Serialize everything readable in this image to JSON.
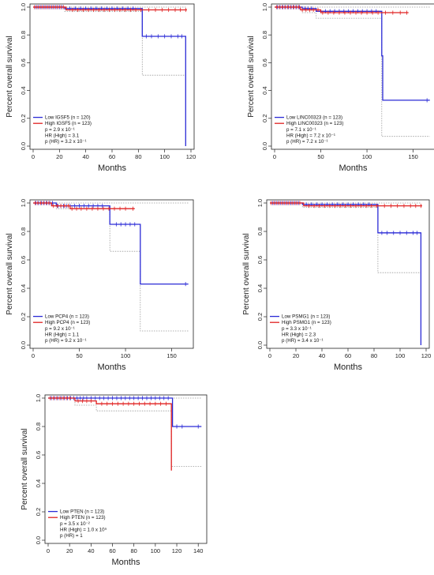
{
  "chart_data": [
    {
      "type": "line",
      "subtype": "kaplan-meier",
      "xlabel": "Months",
      "ylabel": "Percent overall survival",
      "xlim": [
        0,
        120
      ],
      "ylim": [
        0,
        1.0
      ],
      "xticks": [
        "0",
        "20",
        "40",
        "60",
        "80",
        "100",
        "120"
      ],
      "yticks": [
        "0.0",
        "0.2",
        "0.4",
        "0.6",
        "0.8",
        "1.0"
      ],
      "legend_position": "bottom-left",
      "legend": [
        "Low IGSF5 (n = 120)",
        "High IGSF5 (n = 123)",
        "p = 2.9 x 10⁻¹",
        "HR (High) = 3.1",
        "p (HR) = 3.2 x 10⁻¹"
      ],
      "colors": {
        "low": "#2a2ad6",
        "high": "#e02020",
        "ci": "#999999"
      },
      "series": [
        {
          "group": "low",
          "x": [
            0,
            24,
            83,
            116,
            116
          ],
          "y": [
            1.0,
            0.99,
            0.79,
            0.79,
            0.0
          ]
        },
        {
          "group": "high",
          "x": [
            0,
            25,
            117
          ],
          "y": [
            1.0,
            0.98,
            0.98
          ]
        }
      ],
      "ci": [
        {
          "x": [
            0,
            83,
            116
          ],
          "y": [
            1.0,
            1.0,
            1.0
          ]
        },
        {
          "x": [
            0,
            24,
            83,
            116
          ],
          "y": [
            1.0,
            0.97,
            0.51,
            0.51
          ]
        }
      ],
      "censor_low": [
        2,
        4,
        6,
        8,
        10,
        12,
        14,
        16,
        18,
        20,
        22,
        28,
        32,
        36,
        40,
        44,
        48,
        52,
        56,
        60,
        64,
        68,
        72,
        76,
        86,
        90,
        95,
        100,
        105,
        110,
        113
      ],
      "censor_high": [
        1,
        3,
        5,
        7,
        9,
        11,
        13,
        15,
        17,
        19,
        21,
        23,
        30,
        34,
        38,
        42,
        46,
        50,
        54,
        58,
        62,
        66,
        70,
        74,
        78,
        82,
        88,
        93,
        98,
        103,
        108,
        112,
        116
      ]
    },
    {
      "type": "line",
      "subtype": "kaplan-meier",
      "xlabel": "Months",
      "ylabel": "Percent overall survival",
      "xlim": [
        0,
        170
      ],
      "ylim": [
        0,
        1.0
      ],
      "xticks": [
        "0",
        "50",
        "100",
        "150"
      ],
      "yticks": [
        "0.0",
        "0.2",
        "0.4",
        "0.6",
        "0.8",
        "1.0"
      ],
      "legend_position": "bottom-left",
      "legend": [
        "Low LINC00323 (n = 123)",
        "High LINC00323 (n = 123)",
        "p = 7.1 x 10⁻¹",
        "HR (High) = 7.2 x 10⁻¹",
        "p (HR) = 7.2 x 10⁻¹"
      ],
      "colors": {
        "low": "#2a2ad6",
        "high": "#e02020",
        "ci": "#999999"
      },
      "series": [
        {
          "group": "low",
          "x": [
            0,
            30,
            45,
            115,
            116,
            117,
            168
          ],
          "y": [
            1.0,
            0.99,
            0.97,
            0.97,
            0.65,
            0.33,
            0.33
          ]
        },
        {
          "group": "high",
          "x": [
            0,
            28,
            50,
            145
          ],
          "y": [
            1.0,
            0.98,
            0.96,
            0.96
          ]
        }
      ],
      "ci": [
        {
          "x": [
            0,
            116,
            168
          ],
          "y": [
            1.0,
            1.0,
            1.0
          ]
        },
        {
          "x": [
            0,
            30,
            45,
            116,
            168
          ],
          "y": [
            1.0,
            0.96,
            0.92,
            0.07,
            0.07
          ]
        }
      ],
      "censor_low": [
        3,
        6,
        9,
        12,
        15,
        18,
        21,
        24,
        27,
        33,
        36,
        40,
        55,
        60,
        65,
        70,
        75,
        80,
        85,
        90,
        95,
        100,
        105,
        110,
        165
      ],
      "censor_high": [
        2,
        5,
        8,
        11,
        14,
        17,
        20,
        23,
        26,
        30,
        34,
        38,
        42,
        47,
        52,
        58,
        64,
        70,
        76,
        82,
        88,
        94,
        100,
        106,
        112,
        120,
        128,
        136,
        143
      ]
    },
    {
      "type": "line",
      "subtype": "kaplan-meier",
      "xlabel": "Months",
      "ylabel": "Percent overall survival",
      "xlim": [
        0,
        170
      ],
      "ylim": [
        0,
        1.0
      ],
      "xticks": [
        "0",
        "50",
        "100",
        "150"
      ],
      "yticks": [
        "0.0",
        "0.2",
        "0.4",
        "0.6",
        "0.8",
        "1.0"
      ],
      "legend_position": "bottom-left",
      "legend": [
        "Low PCP4 (n = 123)",
        "High PCP4 (n = 123)",
        "p = 9.2 x 10⁻¹",
        "HR (High) = 1.1",
        "p (HR) = 9.2 x 10⁻¹"
      ],
      "colors": {
        "low": "#2a2ad6",
        "high": "#e02020",
        "ci": "#999999"
      },
      "series": [
        {
          "group": "low",
          "x": [
            0,
            25,
            83,
            116,
            168
          ],
          "y": [
            1.0,
            0.98,
            0.85,
            0.43,
            0.43
          ]
        },
        {
          "group": "high",
          "x": [
            0,
            20,
            40,
            110
          ],
          "y": [
            1.0,
            0.98,
            0.96,
            0.96
          ]
        }
      ],
      "ci": [
        {
          "x": [
            0,
            168
          ],
          "y": [
            1.0,
            1.0
          ]
        },
        {
          "x": [
            0,
            25,
            83,
            116,
            168
          ],
          "y": [
            1.0,
            0.96,
            0.66,
            0.1,
            0.1
          ]
        }
      ],
      "censor_low": [
        3,
        6,
        9,
        12,
        15,
        18,
        21,
        27,
        30,
        33,
        36,
        40,
        45,
        50,
        55,
        60,
        65,
        70,
        75,
        90,
        95,
        100,
        105,
        110,
        165
      ],
      "censor_high": [
        2,
        5,
        8,
        11,
        14,
        17,
        22,
        26,
        30,
        34,
        38,
        42,
        47,
        52,
        58,
        64,
        70,
        76,
        82,
        88,
        94,
        100,
        108
      ]
    },
    {
      "type": "line",
      "subtype": "kaplan-meier",
      "xlabel": "Months",
      "ylabel": "Percent overall survival",
      "xlim": [
        0,
        120
      ],
      "ylim": [
        0,
        1.0
      ],
      "xticks": [
        "0",
        "20",
        "40",
        "60",
        "80",
        "100",
        "120"
      ],
      "yticks": [
        "0.0",
        "0.2",
        "0.4",
        "0.6",
        "0.8",
        "1.0"
      ],
      "legend_position": "bottom-left",
      "legend": [
        "Low PSMG1 (n = 123)",
        "High PSMG1 (n = 123)",
        "p = 3.3 x 10⁻¹",
        "HR (High) = 2.3",
        "p (HR) = 3.4 x 10⁻¹"
      ],
      "colors": {
        "low": "#2a2ad6",
        "high": "#e02020",
        "ci": "#999999"
      },
      "series": [
        {
          "group": "low",
          "x": [
            0,
            25,
            83,
            116,
            116
          ],
          "y": [
            1.0,
            0.99,
            0.79,
            0.79,
            0.0
          ]
        },
        {
          "group": "high",
          "x": [
            0,
            26,
            117
          ],
          "y": [
            1.0,
            0.98,
            0.98
          ]
        }
      ],
      "ci": [
        {
          "x": [
            0,
            116
          ],
          "y": [
            1.0,
            1.0
          ]
        },
        {
          "x": [
            0,
            25,
            83,
            116
          ],
          "y": [
            1.0,
            0.97,
            0.51,
            0.51
          ]
        }
      ],
      "censor_low": [
        2,
        4,
        6,
        8,
        10,
        12,
        14,
        16,
        18,
        20,
        22,
        28,
        32,
        36,
        40,
        44,
        48,
        52,
        56,
        60,
        64,
        68,
        72,
        76,
        86,
        90,
        95,
        100,
        105,
        110,
        113
      ],
      "censor_high": [
        1,
        3,
        5,
        7,
        9,
        11,
        13,
        15,
        17,
        19,
        21,
        23,
        30,
        34,
        38,
        42,
        46,
        50,
        54,
        58,
        62,
        66,
        70,
        74,
        78,
        82,
        88,
        93,
        98,
        103,
        108,
        112,
        116
      ]
    },
    {
      "type": "line",
      "subtype": "kaplan-meier",
      "xlabel": "Months",
      "ylabel": "Percent overall survival",
      "xlim": [
        0,
        145
      ],
      "ylim": [
        0,
        1.0
      ],
      "xticks": [
        "0",
        "20",
        "40",
        "60",
        "80",
        "100",
        "120",
        "140"
      ],
      "yticks": [
        "0.0",
        "0.2",
        "0.4",
        "0.6",
        "0.8",
        "1.0"
      ],
      "legend_position": "bottom-left",
      "legend": [
        "Low PTEN (n = 123)",
        "High PTEN (n = 123)",
        "p = 3.5 x 10⁻²",
        "HR (High) = 1.0 x 10⁹",
        "p (HR) = 1"
      ],
      "colors": {
        "low": "#2a2ad6",
        "high": "#e02020",
        "ci": "#999999"
      },
      "series": [
        {
          "group": "low",
          "x": [
            0,
            116,
            143
          ],
          "y": [
            1.0,
            0.8,
            0.8
          ]
        },
        {
          "group": "high",
          "x": [
            0,
            25,
            45,
            115,
            115
          ],
          "y": [
            1.0,
            0.98,
            0.96,
            0.96,
            0.49
          ]
        }
      ],
      "ci": [
        {
          "x": [
            0,
            116,
            143
          ],
          "y": [
            1.0,
            1.0,
            1.0
          ]
        },
        {
          "x": [
            0,
            25,
            45,
            115,
            143
          ],
          "y": [
            1.0,
            0.95,
            0.91,
            0.52,
            0.52
          ]
        }
      ],
      "censor_low": [
        3,
        6,
        9,
        12,
        15,
        18,
        21,
        24,
        27,
        30,
        33,
        36,
        40,
        44,
        48,
        52,
        56,
        60,
        64,
        68,
        72,
        76,
        80,
        84,
        88,
        92,
        96,
        100,
        104,
        108,
        112,
        120,
        125,
        140
      ],
      "censor_high": [
        2,
        5,
        8,
        11,
        14,
        17,
        20,
        28,
        32,
        36,
        40,
        50,
        55,
        60,
        65,
        70,
        75,
        80,
        85,
        90,
        95,
        100,
        105,
        110
      ]
    }
  ]
}
